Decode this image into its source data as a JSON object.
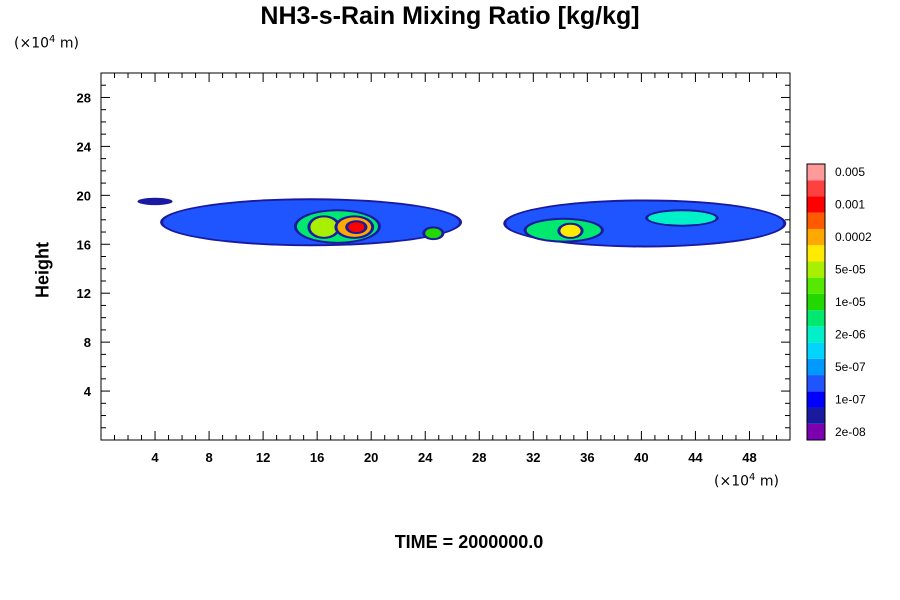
{
  "chart_data": {
    "type": "heatmap",
    "title": "NH3-s-Rain Mixing Ratio [kg/kg]",
    "ylabel": "Height",
    "x_unit": {
      "prefix": "(×10",
      "exp": "4",
      "suffix": " m)"
    },
    "y_unit": {
      "prefix": "(×10",
      "exp": "4",
      "suffix": " m)"
    },
    "xlim": [
      0,
      51
    ],
    "ylim": [
      0,
      30
    ],
    "x_ticks": [
      4,
      8,
      12,
      16,
      20,
      24,
      28,
      32,
      36,
      40,
      44,
      48
    ],
    "y_ticks": [
      4,
      8,
      12,
      16,
      20,
      24,
      28
    ],
    "colorbar": {
      "colors": [
        "#7a00b0",
        "#1a1aa0",
        "#0000ff",
        "#1f55ff",
        "#0099ff",
        "#00d4ff",
        "#00f0c8",
        "#00e86e",
        "#22d800",
        "#55e800",
        "#a8f000",
        "#ffea00",
        "#ffa800",
        "#ff5a00",
        "#ff0000",
        "#ff4040",
        "#ff9a9a"
      ],
      "labels": [
        "2e-08",
        "1e-07",
        "5e-07",
        "2e-06",
        "1e-05",
        "5e-05",
        "0.0002",
        "0.001",
        "0.005"
      ]
    },
    "regions": [
      {
        "x": [
          2.7,
          5.3
        ],
        "y": [
          19.2,
          19.8
        ],
        "level": 1
      },
      {
        "x": [
          4.6,
          26.5
        ],
        "y": [
          16.0,
          19.6
        ],
        "level": 3
      },
      {
        "x": [
          14.5,
          20.5
        ],
        "y": [
          16.2,
          18.7
        ],
        "level": 7
      },
      {
        "x": [
          15.5,
          17.5
        ],
        "y": [
          16.6,
          18.2
        ],
        "level": 10
      },
      {
        "x": [
          17.5,
          20.0
        ],
        "y": [
          16.6,
          18.2
        ],
        "level": 12
      },
      {
        "x": [
          18.3,
          19.5
        ],
        "y": [
          17.0,
          17.8
        ],
        "level": 14
      },
      {
        "x": [
          24.0,
          25.2
        ],
        "y": [
          16.5,
          17.3
        ],
        "level": 8
      },
      {
        "x": [
          30.0,
          50.5
        ],
        "y": [
          15.9,
          19.5
        ],
        "level": 3
      },
      {
        "x": [
          31.5,
          37.0
        ],
        "y": [
          16.3,
          18.0
        ],
        "level": 7
      },
      {
        "x": [
          34.0,
          35.5
        ],
        "y": [
          16.6,
          17.6
        ],
        "level": 11
      },
      {
        "x": [
          40.5,
          45.5
        ],
        "y": [
          17.6,
          18.7
        ],
        "level": 6
      }
    ]
  },
  "footer": {
    "time_label": "TIME = 2000000.0"
  }
}
